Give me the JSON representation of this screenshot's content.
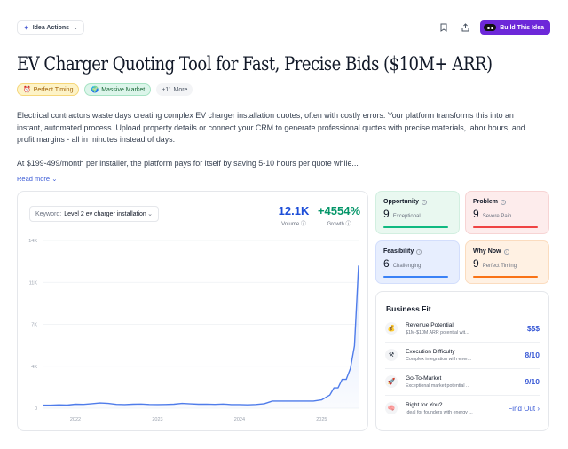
{
  "topbar": {
    "idea_actions_label": "Idea Actions",
    "build_label": "Build This Idea"
  },
  "title": "EV Charger Quoting Tool for Fast, Precise Bids ($10M+ ARR)",
  "tags": [
    {
      "label": "Perfect Timing",
      "icon": "alarm-clock-icon"
    },
    {
      "label": "Massive Market",
      "icon": "globe-icon"
    },
    {
      "label": "+11 More"
    }
  ],
  "description": {
    "p1": "Electrical contractors waste days creating complex EV charger installation quotes, often with costly errors. Your platform transforms this into an instant, automated process. Upload property details or connect your CRM to generate professional quotes with precise materials, labor hours, and profit margins - all in minutes instead of days.",
    "p2": "At $199-499/month per installer, the platform pays for itself by saving 5-10 hours per quote while...",
    "read_more": "Read more"
  },
  "trend": {
    "keyword_label": "Keyword:",
    "keyword_value": "Level 2 ev charger installation",
    "volume_value": "12.1K",
    "volume_label": "Volume",
    "growth_value": "+4554%",
    "growth_label": "Growth"
  },
  "chart_data": {
    "type": "area",
    "y_ticks": [
      "0",
      "4K",
      "7K",
      "11K",
      "14K"
    ],
    "x_ticks": [
      "2022",
      "2023",
      "2024",
      "2025"
    ],
    "ylim": [
      0,
      14000
    ],
    "x": [
      2021.6,
      2021.7,
      2021.8,
      2021.9,
      2022.0,
      2022.1,
      2022.2,
      2022.3,
      2022.4,
      2022.5,
      2022.6,
      2022.7,
      2022.8,
      2022.9,
      2023.0,
      2023.1,
      2023.2,
      2023.3,
      2023.4,
      2023.5,
      2023.6,
      2023.7,
      2023.8,
      2023.9,
      2024.0,
      2024.1,
      2024.2,
      2024.3,
      2024.4,
      2024.5,
      2024.6,
      2024.7,
      2024.8,
      2024.9,
      2025.0,
      2025.05,
      2025.1,
      2025.15,
      2025.2,
      2025.25,
      2025.3,
      2025.35,
      2025.4,
      2025.45
    ],
    "y": [
      250,
      250,
      280,
      260,
      330,
      320,
      380,
      440,
      400,
      320,
      300,
      330,
      350,
      310,
      300,
      310,
      330,
      400,
      360,
      330,
      340,
      320,
      350,
      300,
      300,
      280,
      310,
      380,
      600,
      600,
      600,
      600,
      600,
      600,
      700,
      900,
      1100,
      1700,
      1700,
      2400,
      2400,
      3300,
      5200,
      11900
    ],
    "grid": true,
    "fill_color": "#dbe6fb",
    "line_color": "#4f7cea"
  },
  "metrics": [
    {
      "title": "Opportunity",
      "value": "9",
      "desc": "Exceptional"
    },
    {
      "title": "Problem",
      "value": "9",
      "desc": "Severe Pain"
    },
    {
      "title": "Feasibility",
      "value": "6",
      "desc": "Challenging"
    },
    {
      "title": "Why Now",
      "value": "9",
      "desc": "Perfect Timing"
    }
  ],
  "business_fit": {
    "title": "Business Fit",
    "rows": [
      {
        "name": "Revenue Potential",
        "sub": "$1M-$10M ARR potential wit...",
        "value": "$$$",
        "icon": "money-bag-icon"
      },
      {
        "name": "Execution Difficulty",
        "sub": "Complex integration with ener...",
        "value": "8/10",
        "icon": "tools-icon"
      },
      {
        "name": "Go-To-Market",
        "sub": "Exceptional market potential ...",
        "value": "9/10",
        "icon": "rocket-icon"
      },
      {
        "name": "Right for You?",
        "sub": "Ideal for founders with energy ...",
        "value": "Find Out ›",
        "icon": "brain-icon"
      }
    ]
  }
}
